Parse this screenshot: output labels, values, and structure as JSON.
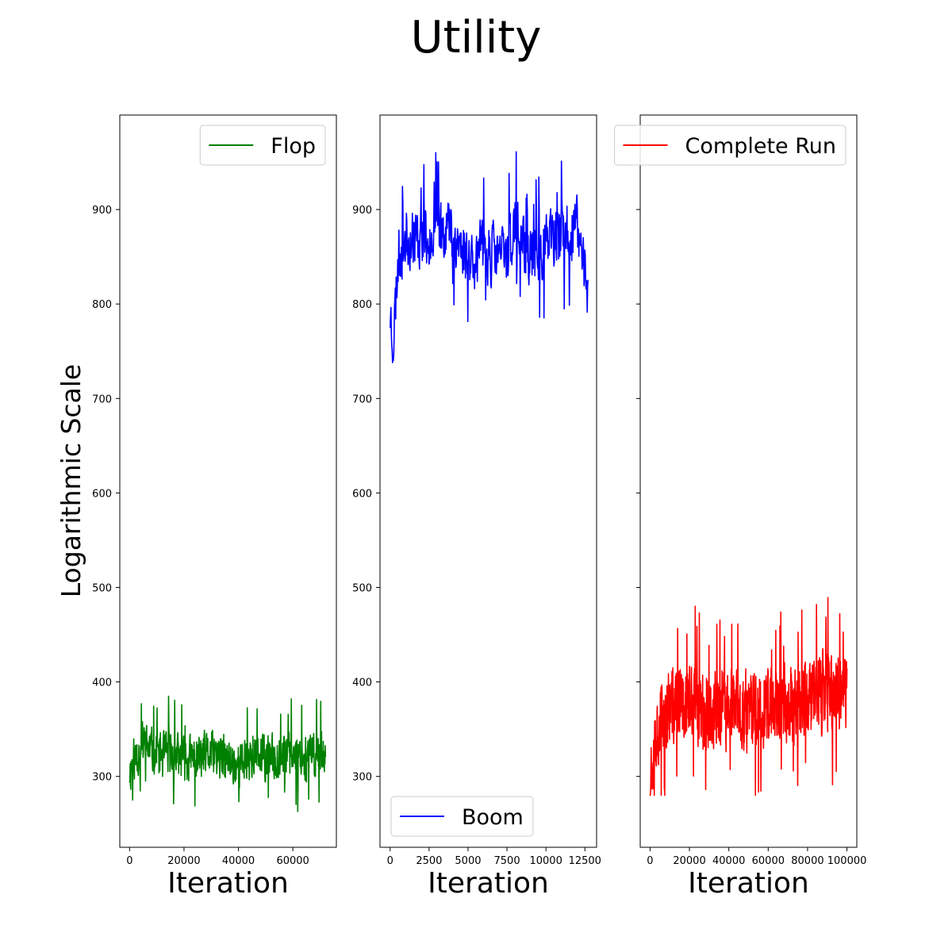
{
  "title": "Utility",
  "ylabel": "Logarithmic Scale",
  "chart_data": [
    {
      "type": "line",
      "xlabel": "Iteration",
      "xlim": [
        -3600,
        76000
      ],
      "xticks": [
        0,
        20000,
        40000,
        60000
      ],
      "xtick_labels": [
        "0",
        "20000",
        "40000",
        "60000"
      ],
      "ylim": [
        225,
        1000
      ],
      "yticks": [
        300,
        400,
        500,
        600,
        700,
        800,
        900
      ],
      "ytick_labels": [
        "300",
        "400",
        "500",
        "600",
        "700",
        "800",
        "900"
      ],
      "legend_position": "upper right",
      "series": [
        {
          "name": "Flop",
          "color": "#008000",
          "x_range": [
            0,
            72000
          ],
          "anchors": [
            [
              0,
              305
            ],
            [
              2000,
              320
            ],
            [
              5000,
              335
            ],
            [
              10000,
              322
            ],
            [
              15000,
              324
            ],
            [
              20000,
              318
            ],
            [
              25000,
              320
            ],
            [
              30000,
              324
            ],
            [
              35000,
              318
            ],
            [
              40000,
              312
            ],
            [
              45000,
              322
            ],
            [
              50000,
              318
            ],
            [
              55000,
              322
            ],
            [
              60000,
              326
            ],
            [
              65000,
              320
            ],
            [
              70000,
              325
            ],
            [
              72000,
              330
            ]
          ],
          "min": 262,
          "max": 385,
          "spread": 22,
          "n": 700,
          "seed": 11
        }
      ]
    },
    {
      "type": "line",
      "xlabel": "Iteration",
      "xlim": [
        -650,
        13250
      ],
      "xticks": [
        0,
        2500,
        5000,
        7500,
        10000,
        12500
      ],
      "xtick_labels": [
        "0",
        "2500",
        "5000",
        "7500",
        "10000",
        "12500"
      ],
      "ylim": [
        225,
        1000
      ],
      "yticks": [
        300,
        400,
        500,
        600,
        700,
        800,
        900
      ],
      "ytick_labels": [
        "300",
        "400",
        "500",
        "600",
        "700",
        "800",
        "900"
      ],
      "legend_position": "lower left",
      "series": [
        {
          "name": "Boom",
          "color": "#0000ff",
          "x_range": [
            0,
            12700
          ],
          "anchors": [
            [
              0,
              790
            ],
            [
              200,
              760
            ],
            [
              500,
              850
            ],
            [
              1000,
              870
            ],
            [
              2500,
              872
            ],
            [
              3700,
              885
            ],
            [
              5000,
              848
            ],
            [
              6000,
              855
            ],
            [
              7500,
              852
            ],
            [
              8000,
              880
            ],
            [
              9000,
              850
            ],
            [
              10000,
              862
            ],
            [
              11000,
              870
            ],
            [
              12000,
              880
            ],
            [
              12500,
              840
            ],
            [
              12700,
              800
            ]
          ],
          "min": 728,
          "max": 962,
          "spread": 30,
          "n": 500,
          "seed": 23
        }
      ]
    },
    {
      "type": "line",
      "xlabel": "Iteration",
      "xlim": [
        -5000,
        105000
      ],
      "xticks": [
        0,
        20000,
        40000,
        60000,
        80000,
        100000
      ],
      "xtick_labels": [
        "0",
        "20000",
        "40000",
        "60000",
        "80000",
        "100000"
      ],
      "ylim": [
        225,
        1000
      ],
      "yticks": [
        300,
        400,
        500,
        600,
        700,
        800,
        900
      ],
      "ytick_labels": [
        "",
        "",
        "",
        "",
        "",
        "",
        ""
      ],
      "legend_position": "upper right",
      "series": [
        {
          "name": "Complete Run",
          "color": "#ff0000",
          "x_range": [
            0,
            100000
          ],
          "anchors": [
            [
              0,
              300
            ],
            [
              2000,
              340
            ],
            [
              5000,
              360
            ],
            [
              10000,
              372
            ],
            [
              20000,
              378
            ],
            [
              30000,
              368
            ],
            [
              40000,
              372
            ],
            [
              50000,
              368
            ],
            [
              60000,
              372
            ],
            [
              70000,
              376
            ],
            [
              80000,
              382
            ],
            [
              90000,
              388
            ],
            [
              100000,
              392
            ]
          ],
          "min": 280,
          "max": 502,
          "spread": 38,
          "n": 900,
          "seed": 37
        }
      ]
    }
  ]
}
